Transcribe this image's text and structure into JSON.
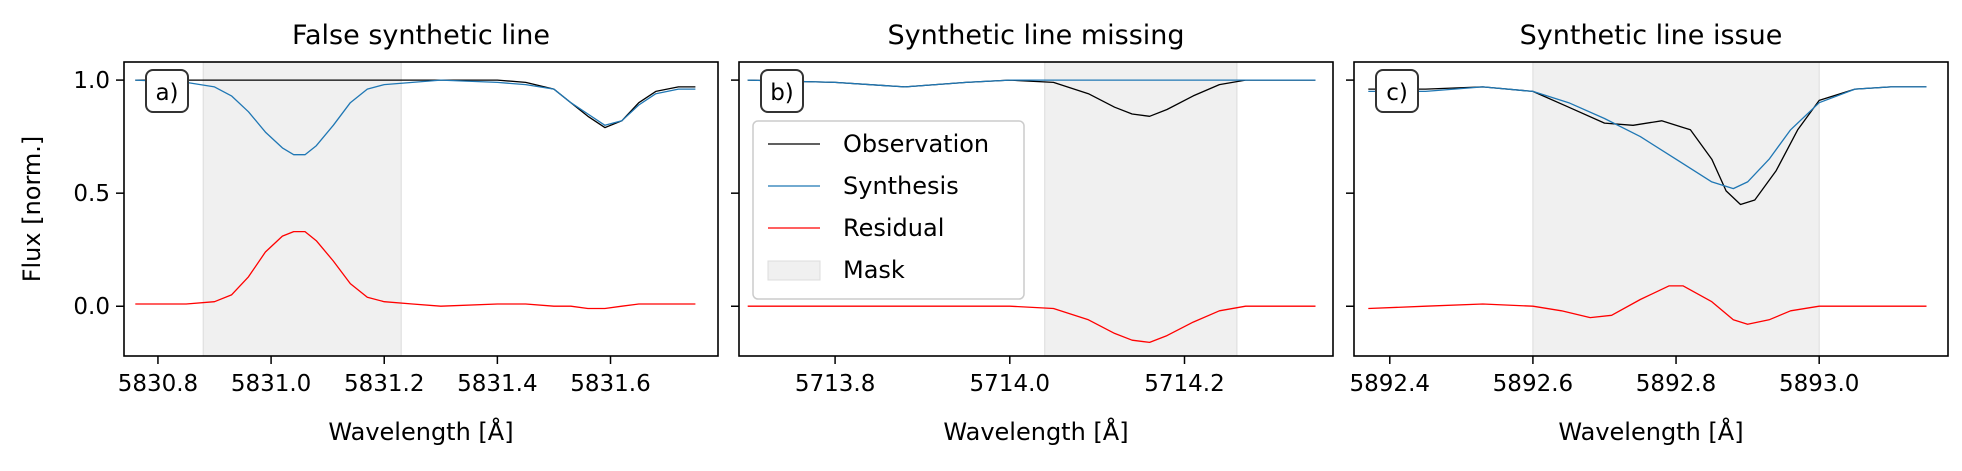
{
  "figure": {
    "ylabel": "Flux [norm.]",
    "xlabel": "Wavelength [Å]"
  },
  "legend": {
    "entries": [
      "Observation",
      "Synthesis",
      "Residual",
      "Mask"
    ]
  },
  "colors": {
    "observation": "#000000",
    "synthesis": "#1f77b4",
    "residual": "#ff0000",
    "mask": "#f0f0f0"
  },
  "chart_data": [
    {
      "type": "line",
      "title": "False synthetic line",
      "panel_label": "a)",
      "xlabel": "Wavelength [Å]",
      "ylabel": "Flux [norm.]",
      "xlim": [
        5830.74,
        5831.79
      ],
      "ylim": [
        -0.22,
        1.08
      ],
      "xticks": [
        5830.8,
        5831.0,
        5831.2,
        5831.4,
        5831.6
      ],
      "xtick_labels": [
        "5830.8",
        "5831.0",
        "5831.2",
        "5831.4",
        "5831.6"
      ],
      "yticks": [
        0.0,
        0.5,
        1.0
      ],
      "ytick_labels": [
        "0.0",
        "0.5",
        "1.0"
      ],
      "mask": [
        5830.88,
        5831.23
      ],
      "series": [
        {
          "name": "Observation",
          "x": [
            5830.76,
            5830.85,
            5830.9,
            5831.0,
            5831.1,
            5831.2,
            5831.3,
            5831.4,
            5831.45,
            5831.5,
            5831.53,
            5831.56,
            5831.59,
            5831.62,
            5831.65,
            5831.68,
            5831.72,
            5831.75
          ],
          "y": [
            1.0,
            1.0,
            1.0,
            1.0,
            1.0,
            1.0,
            1.0,
            1.0,
            0.99,
            0.96,
            0.9,
            0.84,
            0.79,
            0.82,
            0.9,
            0.95,
            0.97,
            0.97
          ]
        },
        {
          "name": "Synthesis",
          "x": [
            5830.76,
            5830.85,
            5830.9,
            5830.93,
            5830.96,
            5830.99,
            5831.02,
            5831.04,
            5831.06,
            5831.08,
            5831.11,
            5831.14,
            5831.17,
            5831.2,
            5831.25,
            5831.3,
            5831.4,
            5831.45,
            5831.5,
            5831.53,
            5831.56,
            5831.59,
            5831.62,
            5831.65,
            5831.68,
            5831.72,
            5831.75
          ],
          "y": [
            1.0,
            0.99,
            0.97,
            0.93,
            0.86,
            0.77,
            0.7,
            0.67,
            0.67,
            0.71,
            0.8,
            0.9,
            0.96,
            0.98,
            0.99,
            1.0,
            0.99,
            0.98,
            0.96,
            0.9,
            0.85,
            0.8,
            0.82,
            0.89,
            0.94,
            0.96,
            0.96
          ]
        },
        {
          "name": "Residual",
          "x": [
            5830.76,
            5830.85,
            5830.9,
            5830.93,
            5830.96,
            5830.99,
            5831.02,
            5831.04,
            5831.06,
            5831.08,
            5831.11,
            5831.14,
            5831.17,
            5831.2,
            5831.25,
            5831.3,
            5831.4,
            5831.45,
            5831.5,
            5831.53,
            5831.56,
            5831.59,
            5831.62,
            5831.65,
            5831.68,
            5831.72,
            5831.75
          ],
          "y": [
            0.01,
            0.01,
            0.02,
            0.05,
            0.13,
            0.24,
            0.31,
            0.33,
            0.33,
            0.29,
            0.2,
            0.1,
            0.04,
            0.02,
            0.01,
            0.0,
            0.01,
            0.01,
            0.0,
            0.0,
            -0.01,
            -0.01,
            0.0,
            0.01,
            0.01,
            0.01,
            0.01
          ]
        }
      ]
    },
    {
      "type": "line",
      "title": "Synthetic line missing",
      "panel_label": "b)",
      "xlabel": "Wavelength [Å]",
      "ylabel": "",
      "xlim": [
        5713.69,
        5714.37
      ],
      "ylim": [
        -0.22,
        1.08
      ],
      "xticks": [
        5713.8,
        5714.0,
        5714.2
      ],
      "xtick_labels": [
        "5713.8",
        "5714.0",
        "5714.2"
      ],
      "yticks": [
        0.0,
        0.5,
        1.0
      ],
      "ytick_labels": [
        "",
        "",
        ""
      ],
      "mask": [
        5714.04,
        5714.26
      ],
      "legend": "left",
      "series": [
        {
          "name": "Observation",
          "x": [
            5713.7,
            5713.8,
            5713.88,
            5713.95,
            5714.0,
            5714.05,
            5714.09,
            5714.12,
            5714.14,
            5714.16,
            5714.18,
            5714.21,
            5714.24,
            5714.27,
            5714.3,
            5714.35
          ],
          "y": [
            1.0,
            0.99,
            0.97,
            0.99,
            1.0,
            0.99,
            0.94,
            0.88,
            0.85,
            0.84,
            0.87,
            0.93,
            0.98,
            1.0,
            1.0,
            1.0
          ]
        },
        {
          "name": "Synthesis",
          "x": [
            5713.7,
            5713.8,
            5713.88,
            5713.95,
            5714.0,
            5714.05,
            5714.15,
            5714.25,
            5714.35
          ],
          "y": [
            1.0,
            0.99,
            0.97,
            0.99,
            1.0,
            1.0,
            1.0,
            1.0,
            1.0
          ]
        },
        {
          "name": "Residual",
          "x": [
            5713.7,
            5713.8,
            5713.9,
            5714.0,
            5714.05,
            5714.09,
            5714.12,
            5714.14,
            5714.16,
            5714.18,
            5714.21,
            5714.24,
            5714.27,
            5714.3,
            5714.35
          ],
          "y": [
            0.0,
            0.0,
            0.0,
            0.0,
            -0.01,
            -0.06,
            -0.12,
            -0.15,
            -0.16,
            -0.13,
            -0.07,
            -0.02,
            0.0,
            0.0,
            0.0
          ]
        }
      ]
    },
    {
      "type": "line",
      "title": "Synthetic line issue",
      "panel_label": "c)",
      "xlabel": "Wavelength [Å]",
      "ylabel": "",
      "xlim": [
        5892.35,
        5893.18
      ],
      "ylim": [
        -0.22,
        1.08
      ],
      "xticks": [
        5892.4,
        5892.6,
        5892.8,
        5893.0
      ],
      "xtick_labels": [
        "5892.4",
        "5892.6",
        "5892.8",
        "5893.0"
      ],
      "yticks": [
        0.0,
        0.5,
        1.0
      ],
      "ytick_labels": [
        "",
        "",
        ""
      ],
      "mask": [
        5892.6,
        5893.0
      ],
      "series": [
        {
          "name": "Observation",
          "x": [
            5892.37,
            5892.45,
            5892.53,
            5892.6,
            5892.65,
            5892.7,
            5892.74,
            5892.78,
            5892.82,
            5892.85,
            5892.87,
            5892.89,
            5892.91,
            5892.94,
            5892.97,
            5893.0,
            5893.05,
            5893.1,
            5893.15
          ],
          "y": [
            0.96,
            0.96,
            0.97,
            0.95,
            0.88,
            0.81,
            0.8,
            0.82,
            0.78,
            0.65,
            0.51,
            0.45,
            0.47,
            0.6,
            0.78,
            0.91,
            0.96,
            0.97,
            0.97
          ]
        },
        {
          "name": "Synthesis",
          "x": [
            5892.37,
            5892.45,
            5892.53,
            5892.6,
            5892.65,
            5892.7,
            5892.75,
            5892.8,
            5892.85,
            5892.88,
            5892.9,
            5892.93,
            5892.96,
            5893.0,
            5893.05,
            5893.1,
            5893.15
          ],
          "y": [
            0.95,
            0.95,
            0.97,
            0.95,
            0.9,
            0.83,
            0.75,
            0.65,
            0.55,
            0.52,
            0.55,
            0.65,
            0.78,
            0.9,
            0.96,
            0.97,
            0.97
          ]
        },
        {
          "name": "Residual",
          "x": [
            5892.37,
            5892.45,
            5892.53,
            5892.6,
            5892.64,
            5892.68,
            5892.71,
            5892.75,
            5892.79,
            5892.81,
            5892.85,
            5892.88,
            5892.9,
            5892.93,
            5892.96,
            5893.0,
            5893.05,
            5893.15
          ],
          "y": [
            -0.01,
            0.0,
            0.01,
            0.0,
            -0.02,
            -0.05,
            -0.04,
            0.03,
            0.09,
            0.09,
            0.02,
            -0.06,
            -0.08,
            -0.06,
            -0.02,
            0.0,
            0.0,
            0.0
          ]
        }
      ]
    }
  ]
}
